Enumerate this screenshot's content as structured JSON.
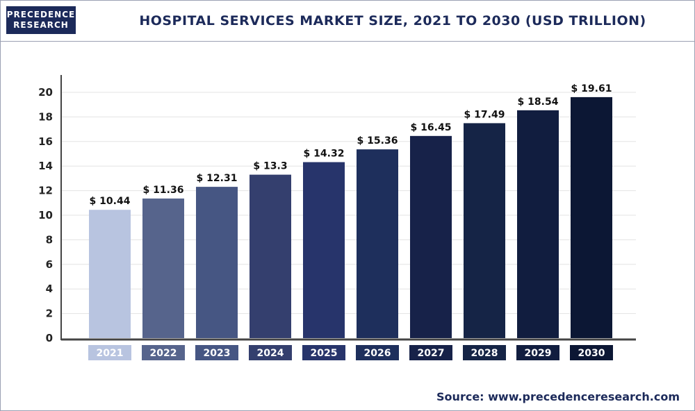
{
  "header": {
    "logo_line1": "PRECEDENCE",
    "logo_line2": "RESEARCH",
    "title": "HOSPITAL SERVICES MARKET SIZE, 2021 TO 2030 (USD TRILLION)"
  },
  "footer": {
    "source": "Source: www.precedenceresearch.com"
  },
  "chart_data": {
    "type": "bar",
    "title": "HOSPITAL SERVICES MARKET SIZE, 2021 TO 2030 (USD TRILLION)",
    "xlabel": "",
    "ylabel": "",
    "categories": [
      "2021",
      "2022",
      "2023",
      "2024",
      "2025",
      "2026",
      "2027",
      "2028",
      "2029",
      "2030"
    ],
    "values": [
      10.44,
      11.36,
      12.31,
      13.3,
      14.32,
      15.36,
      16.45,
      17.49,
      18.54,
      19.61
    ],
    "data_labels": [
      "$ 10.44",
      "$ 11.36",
      "$ 12.31",
      "$ 13.3",
      "$ 14.32",
      "$ 15.36",
      "$ 16.45",
      "$ 17.49",
      "$ 18.54",
      "$ 19.61"
    ],
    "ylim": [
      0,
      20
    ],
    "yticks": [
      0,
      2,
      4,
      6,
      8,
      10,
      12,
      14,
      16,
      18,
      20
    ],
    "grid": true,
    "legend": "none",
    "colors": [
      "#b8c4e0",
      "#56648c",
      "#465683",
      "#343f6e",
      "#27346b",
      "#1e2f5c",
      "#172249",
      "#152446",
      "#111d3f",
      "#0c1734"
    ]
  }
}
